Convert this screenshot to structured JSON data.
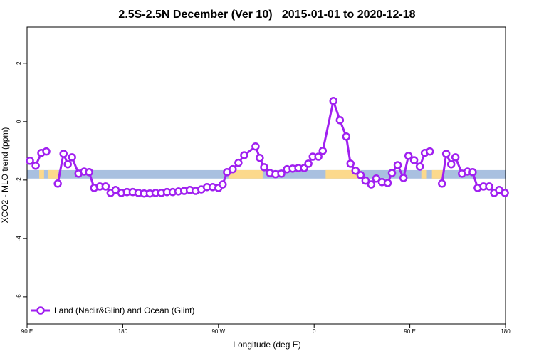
{
  "chart_data": {
    "type": "line",
    "title": "2.5S-2.5N December (Ver 10)   2015-01-01 to 2020-12-18",
    "x_label": "Longitude (deg E)",
    "y_label": "XCO2 - MLO trend (ppm)",
    "xlim": [
      90,
      540
    ],
    "ylim": [
      -6.93,
      3.24
    ],
    "xticks": [
      {
        "value": 90,
        "label": "90 E"
      },
      180,
      {
        "value": 270,
        "label": "90 W"
      },
      {
        "value": 360,
        "label": "0"
      },
      {
        "value": 450,
        "label": "90 E"
      },
      {
        "value": 540,
        "label": "180"
      }
    ],
    "yticks": [
      -6,
      -4,
      -2,
      0,
      2
    ],
    "legend": "bottomleft",
    "band": {
      "ylim": [
        -1.95,
        -1.66
      ],
      "color": "#a9c0e0"
    },
    "land_color": "#fcd98c",
    "land_segments": [
      [
        101.4,
        106
      ],
      [
        110,
        119.6
      ],
      [
        279.4,
        311.6
      ],
      [
        370.8,
        403.7
      ],
      [
        460.8,
        466
      ],
      [
        470.8,
        480.9
      ]
    ],
    "series": [
      {
        "name": "Land (Nadir&Glint) and Ocean (Glint)",
        "color": "#a020f0",
        "x": [
          92.7,
          98.1,
          103.4,
          108.1,
          null,
          118.9,
          124.3,
          128.3,
          132.3,
          138.4,
          143.7,
          148.4,
          153.1,
          158.5,
          163.9,
          168.6,
          173.3,
          178.7,
          184.0,
          189.4,
          194.8,
          200.1,
          205.5,
          210.9,
          216.3,
          221.6,
          227.0,
          232.4,
          237.8,
          243.1,
          248.5,
          253.9,
          259.2,
          264.6,
          270.0,
          274.0,
          278.1,
          283.4,
          288.8,
          294.2,
          304.9,
          308.9,
          313.0,
          318.4,
          323.7,
          329.1,
          334.5,
          339.8,
          345.2,
          350.6,
          354.6,
          358.7,
          364.0,
          368.1,
          378.1,
          384.2,
          390.2,
          394.2,
          398.9,
          403.7,
          408.3,
          413.7,
          418.4,
          423.8,
          429.2,
          433.2,
          438.6,
          444.0,
          448.7,
          454.0,
          459.4,
          464.1,
          468.8,
          null,
          480.2,
          484.2,
          488.9,
          492.9,
          499.0,
          504.3,
          509.1,
          513.8,
          519.2,
          524.6,
          529.3,
          534.0,
          539.4
        ],
        "values": [
          -1.34,
          -1.51,
          -1.07,
          -1.02,
          null,
          -2.12,
          -1.1,
          -1.46,
          -1.22,
          -1.78,
          -1.71,
          -1.73,
          -2.27,
          -2.22,
          -2.22,
          -2.44,
          -2.34,
          -2.44,
          -2.41,
          -2.41,
          -2.44,
          -2.46,
          -2.46,
          -2.44,
          -2.44,
          -2.41,
          -2.41,
          -2.39,
          -2.37,
          -2.34,
          -2.37,
          -2.32,
          -2.24,
          -2.24,
          -2.27,
          -2.15,
          -1.73,
          -1.63,
          -1.41,
          -1.15,
          -0.85,
          -1.24,
          -1.56,
          -1.76,
          -1.8,
          -1.78,
          -1.63,
          -1.61,
          -1.59,
          -1.59,
          -1.44,
          -1.2,
          -1.2,
          -1.0,
          0.71,
          0.05,
          -0.51,
          -1.44,
          -1.68,
          -1.83,
          -2.02,
          -2.15,
          -1.95,
          -2.07,
          -2.1,
          -1.76,
          -1.49,
          -1.93,
          -1.17,
          -1.32,
          -1.54,
          -1.07,
          -1.02,
          null,
          -2.12,
          -1.1,
          -1.46,
          -1.22,
          -1.78,
          -1.71,
          -1.73,
          -2.27,
          -2.22,
          -2.22,
          -2.44,
          -2.34,
          -2.44
        ]
      }
    ]
  }
}
